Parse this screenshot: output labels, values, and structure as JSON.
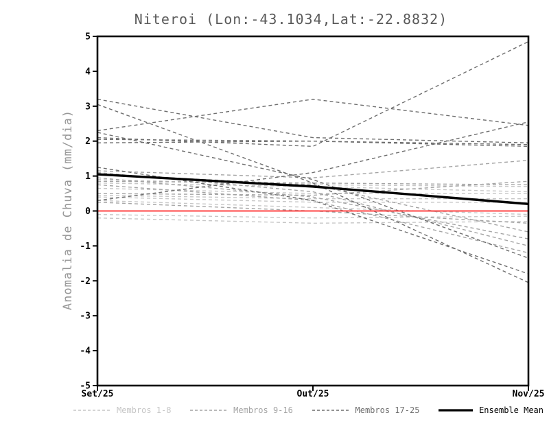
{
  "chart_data": {
    "type": "line",
    "title": "Niteroi (Lon:-43.1034,Lat:-22.8832)",
    "ylabel": "Anomalia de Chuva (mm/dia)",
    "x_categories": [
      "Set/25",
      "Out/25",
      "Nov/25"
    ],
    "ylim": [
      -5,
      5
    ],
    "yticks": [
      -5,
      -4,
      -3,
      -2,
      -1,
      0,
      1,
      2,
      3,
      4,
      5
    ],
    "grid": "off",
    "legend_position": "bottom",
    "axis_color": "#000000",
    "title_color": "#5a5a5a",
    "ylabel_color": "#979797",
    "zero_line": {
      "value": 0,
      "color": "#ff4444"
    },
    "groups": [
      {
        "name": "Membros 1-8",
        "color": "#c6c6c6",
        "style": "dashed"
      },
      {
        "name": "Membros 9-16",
        "color": "#a4a4a4",
        "style": "dashed"
      },
      {
        "name": "Membros 17-25",
        "color": "#6e6e6e",
        "style": "dashed"
      },
      {
        "name": "Ensemble Mean",
        "color": "#000000",
        "style": "solid"
      }
    ],
    "series": [
      {
        "name": "Membro 1",
        "group": 0,
        "values": [
          0.9,
          0.75,
          0.7
        ]
      },
      {
        "name": "Membro 2",
        "group": 0,
        "values": [
          0.8,
          0.7,
          0.55
        ]
      },
      {
        "name": "Membro 3",
        "group": 0,
        "values": [
          0.65,
          0.5,
          0.5
        ]
      },
      {
        "name": "Membro 4",
        "group": 0,
        "values": [
          0.45,
          0.35,
          0.35
        ]
      },
      {
        "name": "Membro 5",
        "group": 0,
        "values": [
          0.4,
          0.25,
          0.25
        ]
      },
      {
        "name": "Membro 6",
        "group": 0,
        "values": [
          0.3,
          0.1,
          -0.1
        ]
      },
      {
        "name": "Membro 7",
        "group": 0,
        "values": [
          -0.1,
          -0.2,
          -0.15
        ]
      },
      {
        "name": "Membro 8",
        "group": 0,
        "values": [
          -0.2,
          -0.35,
          -0.3
        ]
      },
      {
        "name": "Membro 9",
        "group": 1,
        "values": [
          1.15,
          0.95,
          1.45
        ]
      },
      {
        "name": "Membro 10",
        "group": 1,
        "values": [
          1.1,
          0.55,
          -1.0
        ]
      },
      {
        "name": "Membro 11",
        "group": 1,
        "values": [
          1.05,
          0.75,
          -0.6
        ]
      },
      {
        "name": "Membro 12",
        "group": 1,
        "values": [
          0.95,
          0.4,
          -0.8
        ]
      },
      {
        "name": "Membro 13",
        "group": 1,
        "values": [
          0.85,
          0.8,
          0.75
        ]
      },
      {
        "name": "Membro 14",
        "group": 1,
        "values": [
          0.75,
          0.3,
          -1.2
        ]
      },
      {
        "name": "Membro 15",
        "group": 1,
        "values": [
          0.5,
          0.45,
          0.85
        ]
      },
      {
        "name": "Membro 16",
        "group": 1,
        "values": [
          0.25,
          0.0,
          -0.35
        ]
      },
      {
        "name": "Membro 17",
        "group": 2,
        "values": [
          3.2,
          2.1,
          1.95
        ]
      },
      {
        "name": "Membro 18",
        "group": 2,
        "values": [
          3.05,
          0.8,
          -2.05
        ]
      },
      {
        "name": "Membro 19",
        "group": 2,
        "values": [
          2.3,
          3.2,
          2.45
        ]
      },
      {
        "name": "Membro 20",
        "group": 2,
        "values": [
          2.25,
          0.9,
          -1.35
        ]
      },
      {
        "name": "Membro 21",
        "group": 2,
        "values": [
          2.1,
          1.85,
          4.85
        ]
      },
      {
        "name": "Membro 22",
        "group": 2,
        "values": [
          2.05,
          2.0,
          1.9
        ]
      },
      {
        "name": "Membro 23",
        "group": 2,
        "values": [
          1.95,
          2.0,
          1.85
        ]
      },
      {
        "name": "Membro 24",
        "group": 2,
        "values": [
          1.25,
          0.3,
          -1.8
        ]
      },
      {
        "name": "Membro 25",
        "group": 2,
        "values": [
          0.3,
          1.1,
          2.55
        ]
      },
      {
        "name": "Ensemble Mean",
        "group": 3,
        "values": [
          1.05,
          0.7,
          0.2
        ]
      }
    ]
  }
}
